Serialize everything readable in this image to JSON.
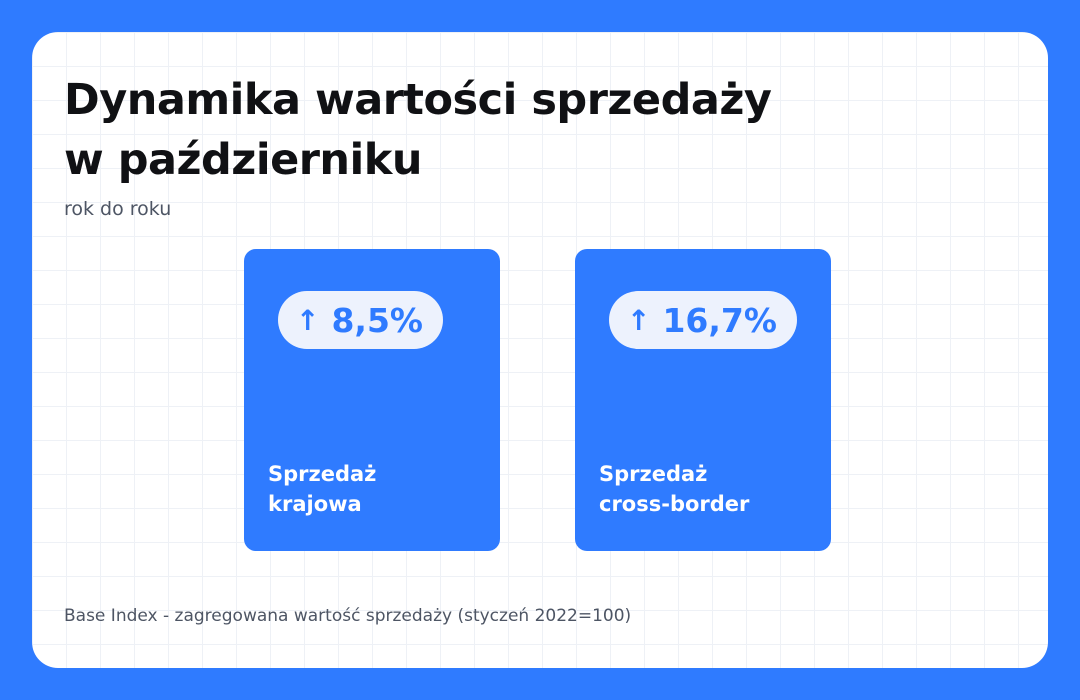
{
  "title": {
    "line1": "Dynamika wartości sprzedaży",
    "line2": "w październiku"
  },
  "subtitle": "rok do roku",
  "stats": [
    {
      "arrow_icon": "arrow-up-icon",
      "arrow": "↑",
      "value": "8,5%",
      "label_line1": "Sprzedaż",
      "label_line2": "krajowa"
    },
    {
      "arrow_icon": "arrow-up-icon",
      "arrow": "↑",
      "value": "16,7%",
      "label_line1": "Sprzedaż",
      "label_line2": "cross-border"
    }
  ],
  "footnote": "Base Index - zagregowana wartość sprzedaży (styczeń 2022=100)",
  "colors": {
    "background": "#2f7bff",
    "card": "#ffffff",
    "accent": "#2f7bff",
    "pill": "#edf2fd"
  }
}
